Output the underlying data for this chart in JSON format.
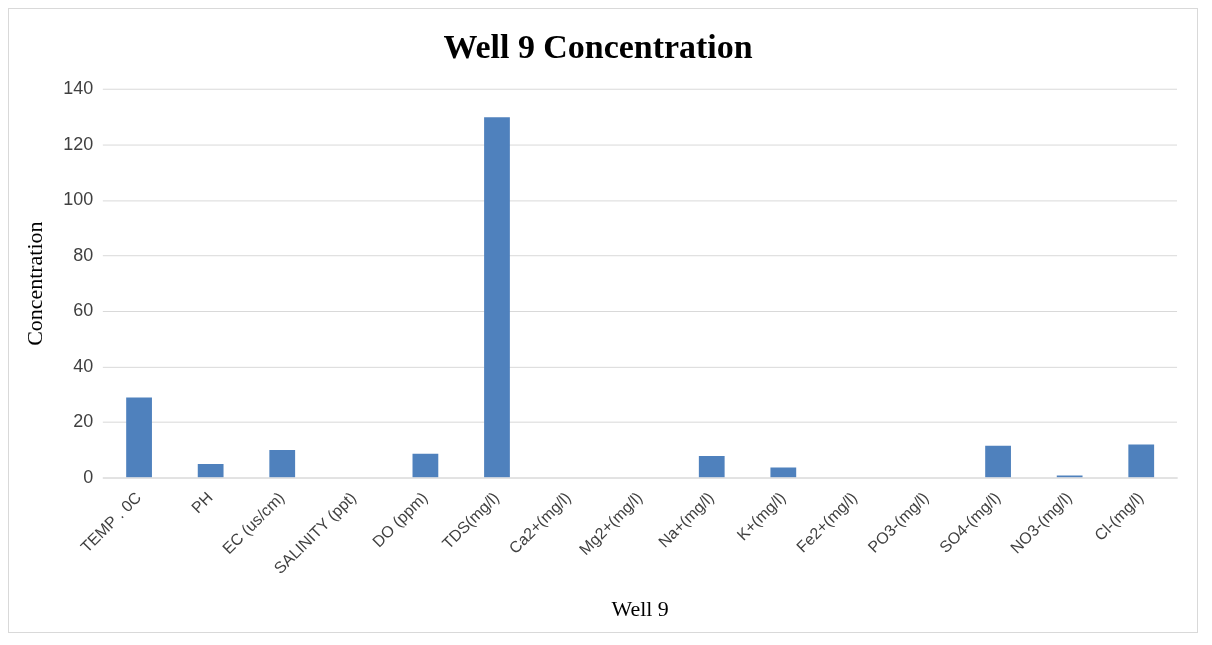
{
  "chart_data": {
    "type": "bar",
    "title": "Well 9 Concentration",
    "xlabel": "Well 9",
    "ylabel": "Concentration",
    "categories": [
      "TEMP . 0C",
      "PH",
      "EC (us/cm)",
      "SALINITY (ppt)",
      "DO (ppm)",
      "TDS(mg/l)",
      "Ca2+(mg/l)",
      "Mg2+(mg/l)",
      "Na+(mg/l)",
      "K+(mg/l)",
      "Fe2+(mg/l)",
      "PO3-(mg/l)",
      "SO4-(mg/l)",
      "NO3-(mg/l)",
      "Cl-(mg/l)"
    ],
    "values": [
      29,
      5,
      10,
      0,
      8.7,
      130,
      0,
      0,
      7.9,
      3.7,
      0,
      0,
      11.6,
      0.8,
      12
    ],
    "color": "#4f81bd",
    "ylim": [
      0,
      140
    ],
    "yticks": [
      0,
      20,
      40,
      60,
      80,
      100,
      120,
      140
    ],
    "grid": "y",
    "legend": false
  }
}
